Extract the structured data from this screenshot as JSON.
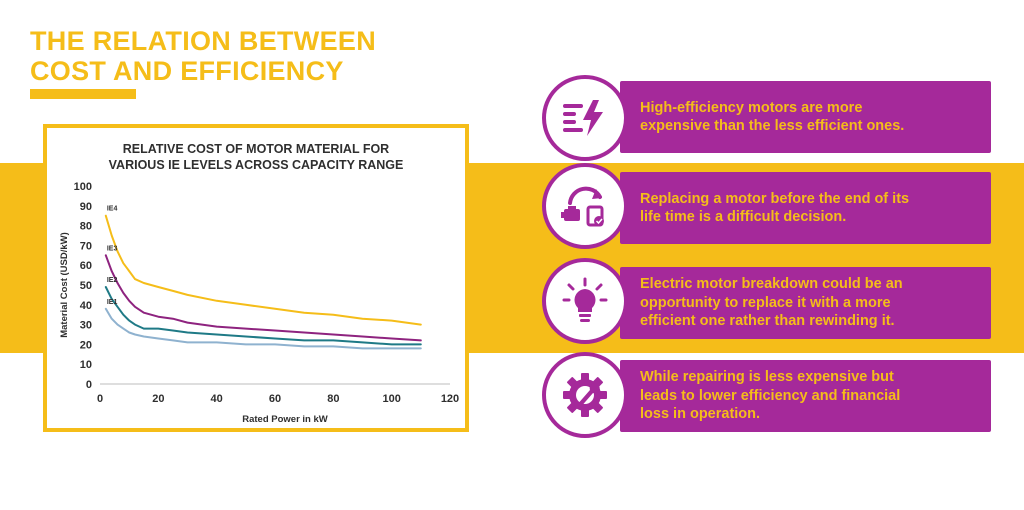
{
  "page": {
    "title_line1": "THE RELATION BETWEEN",
    "title_line2": "COST AND EFFICIENCY"
  },
  "colors": {
    "accent_yellow": "#f5bd19",
    "accent_purple": "#a5299a",
    "IE4": "#f5bd19",
    "IE3": "#8e237f",
    "IE2": "#1f7a86",
    "IE1": "#8fb2cf"
  },
  "chart_data": {
    "type": "line",
    "title_line1": "RELATIVE COST OF MOTOR MATERIAL FOR",
    "title_line2": "VARIOUS IE LEVELS ACROSS CAPACITY RANGE",
    "xlabel": "Rated Power in kW",
    "ylabel": "Material Cost (USD/kW)",
    "xlim": [
      0,
      120
    ],
    "ylim": [
      0,
      100
    ],
    "xticks": [
      "0",
      "20",
      "40",
      "60",
      "80",
      "100",
      "120"
    ],
    "yticks": [
      "0",
      "10",
      "20",
      "30",
      "40",
      "50",
      "60",
      "70",
      "80",
      "90",
      "100"
    ],
    "grid": false,
    "series": [
      {
        "name": "IE4",
        "x": [
          2,
          4,
          6,
          8,
          10,
          12,
          15,
          20,
          25,
          30,
          40,
          50,
          60,
          70,
          80,
          90,
          100,
          110
        ],
        "y": [
          85,
          75,
          67,
          61,
          57,
          53,
          51,
          49,
          47,
          45,
          42,
          40,
          38,
          36,
          35,
          33,
          32,
          30
        ]
      },
      {
        "name": "IE3",
        "x": [
          2,
          4,
          6,
          8,
          10,
          12,
          15,
          20,
          25,
          30,
          40,
          50,
          60,
          70,
          80,
          90,
          100,
          110
        ],
        "y": [
          65,
          57,
          51,
          46,
          42,
          39,
          36,
          34,
          33,
          31,
          29,
          28,
          27,
          26,
          25,
          24,
          23,
          22
        ]
      },
      {
        "name": "IE2",
        "x": [
          2,
          4,
          6,
          8,
          10,
          12,
          15,
          20,
          25,
          30,
          40,
          50,
          60,
          70,
          80,
          90,
          100,
          110
        ],
        "y": [
          49,
          43,
          39,
          35,
          32,
          30,
          28,
          28,
          27,
          26,
          25,
          24,
          23,
          22,
          22,
          21,
          20,
          20
        ]
      },
      {
        "name": "IE1",
        "x": [
          2,
          4,
          6,
          8,
          10,
          12,
          15,
          20,
          25,
          30,
          40,
          50,
          60,
          70,
          80,
          90,
          100,
          110
        ],
        "y": [
          38,
          33,
          30,
          28,
          26,
          25,
          24,
          23,
          22,
          21,
          21,
          20,
          20,
          19,
          19,
          18,
          18,
          18
        ]
      }
    ]
  },
  "panels": [
    {
      "icon": "efficiency-bolt-icon",
      "text_line1": "High-efficiency motors are more",
      "text_line2": "expensive than the less efficient ones."
    },
    {
      "icon": "motor-replace-icon",
      "text_line1": "Replacing a motor before the end of its",
      "text_line2": "life time is a difficult decision."
    },
    {
      "icon": "lightbulb-icon",
      "text_line1": "Electric motor breakdown could be an",
      "text_line2": "opportunity to replace it with a more",
      "text_line3": "efficient one rather than rewinding it."
    },
    {
      "icon": "gear-wrench-icon",
      "text_line1": "While repairing is less expensive but",
      "text_line2": "leads to lower efficiency and financial",
      "text_line3": "loss in operation."
    }
  ]
}
